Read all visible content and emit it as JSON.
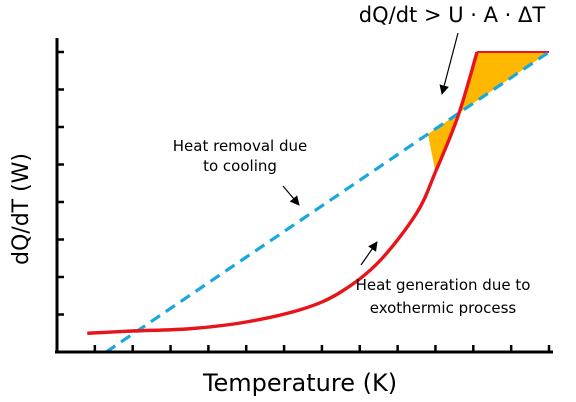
{
  "chart_data": {
    "type": "line",
    "xlabel": "Temperature (K)",
    "ylabel": "dQ/dT (W)",
    "title": "",
    "xlim": [
      0,
      13
    ],
    "ylim": [
      0,
      8
    ],
    "grid": false,
    "axis_tick_labels": false,
    "series": [
      {
        "name": "",
        "style": "dashed",
        "color": "#1aa7e0",
        "x": [
          1.3,
          13
        ],
        "y": [
          0,
          8
        ]
      },
      {
        "name": "",
        "style": "solid",
        "color": "#e8141c",
        "x": [
          0.8,
          2.0,
          3.5,
          5.0,
          6.5,
          7.5,
          8.5,
          9.5,
          10.0,
          10.6,
          11.1
        ],
        "y": [
          0.5,
          0.56,
          0.62,
          0.8,
          1.15,
          1.6,
          2.4,
          3.7,
          4.8,
          6.3,
          8.0
        ]
      }
    ],
    "shaded_region": {
      "color": "#ffb800",
      "between": "generation curve and removal line, above their intersection",
      "x_range": [
        9.8,
        13
      ]
    },
    "annotations": [
      {
        "lines": [
          "Heat removal due",
          "to cooling"
        ],
        "target_series": "removal"
      },
      {
        "lines": [
          "Heat generation due to",
          "exothermic process"
        ],
        "target_series": "generation"
      },
      {
        "lines": [
          "dQ/dt > U · A · ΔT"
        ],
        "target_series": "shaded_region"
      }
    ]
  }
}
